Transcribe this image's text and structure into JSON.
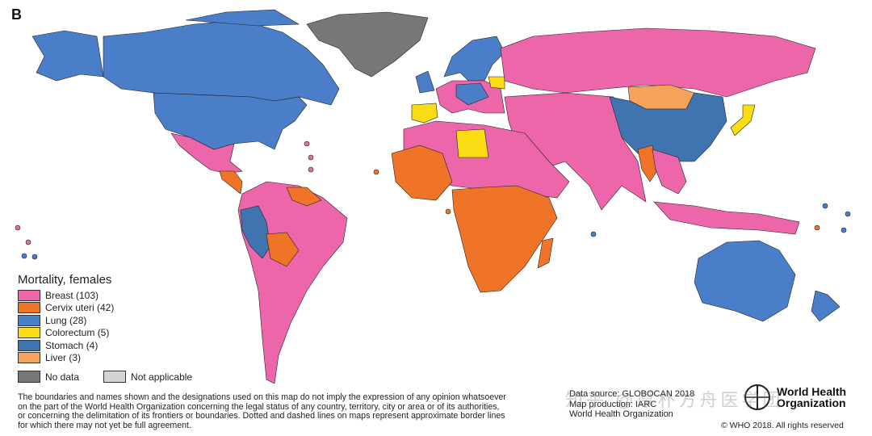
{
  "panel_label": "B",
  "legend": {
    "title": "Mortality, females",
    "items": [
      {
        "label": "Breast (103)",
        "color": "#ee66aa"
      },
      {
        "label": "Cervix uteri (42)",
        "color": "#f07428"
      },
      {
        "label": "Lung (28)",
        "color": "#4a7ec8"
      },
      {
        "label": "Colorectum (5)",
        "color": "#f9dc14"
      },
      {
        "label": "Stomach (4)",
        "color": "#3f74b0"
      },
      {
        "label": "Liver (3)",
        "color": "#f4a25c"
      }
    ],
    "no_data": {
      "label": "No data",
      "color": "#777777"
    },
    "not_applicable": {
      "label": "Not applicable",
      "color": "#d4d4d4"
    }
  },
  "disclaimer": [
    "The boundaries and names shown and the designations used on this map do not imply the expression of any opinion whatsoever",
    "on the part of the World Health Organization concerning the legal status of any country, territory, city or area or of its authorities,",
    "or concerning the delimitation of its frontiers or boundaries. Dotted and dashed lines on maps represent approximate border lines",
    "for which there may not yet be full agreement."
  ],
  "credits": [
    "Data source: GLOBOCAN 2018",
    "Map production: IARC",
    "World Health Organization"
  ],
  "who_logo": "World Health Organization",
  "copyright": "© WHO 2018. All rights reserved",
  "watermark": "知乎 @厚朴方舟医学团"
}
